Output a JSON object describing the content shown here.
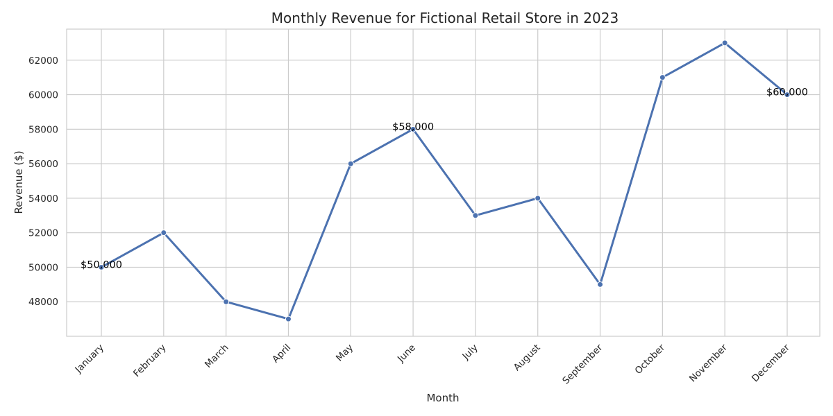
{
  "chart_data": {
    "type": "line",
    "title": "Monthly Revenue for Fictional Retail Store in 2023",
    "xlabel": "Month",
    "ylabel": "Revenue ($)",
    "categories": [
      "January",
      "February",
      "March",
      "April",
      "May",
      "June",
      "July",
      "August",
      "September",
      "October",
      "November",
      "December"
    ],
    "values": [
      50000,
      52000,
      48000,
      47000,
      56000,
      58000,
      53000,
      54000,
      49000,
      61000,
      63000,
      60000
    ],
    "ylim": [
      46000,
      63800
    ],
    "yticks": [
      48000,
      50000,
      52000,
      54000,
      56000,
      58000,
      60000,
      62000
    ],
    "grid": true,
    "annotations": [
      {
        "index": 0,
        "text": "$50,000"
      },
      {
        "index": 5,
        "text": "$58,000"
      },
      {
        "index": 11,
        "text": "$60,000"
      }
    ],
    "colors": {
      "line": "#4c72b0",
      "grid": "#cccccc",
      "spine": "#cccccc",
      "text": "#262626"
    }
  }
}
